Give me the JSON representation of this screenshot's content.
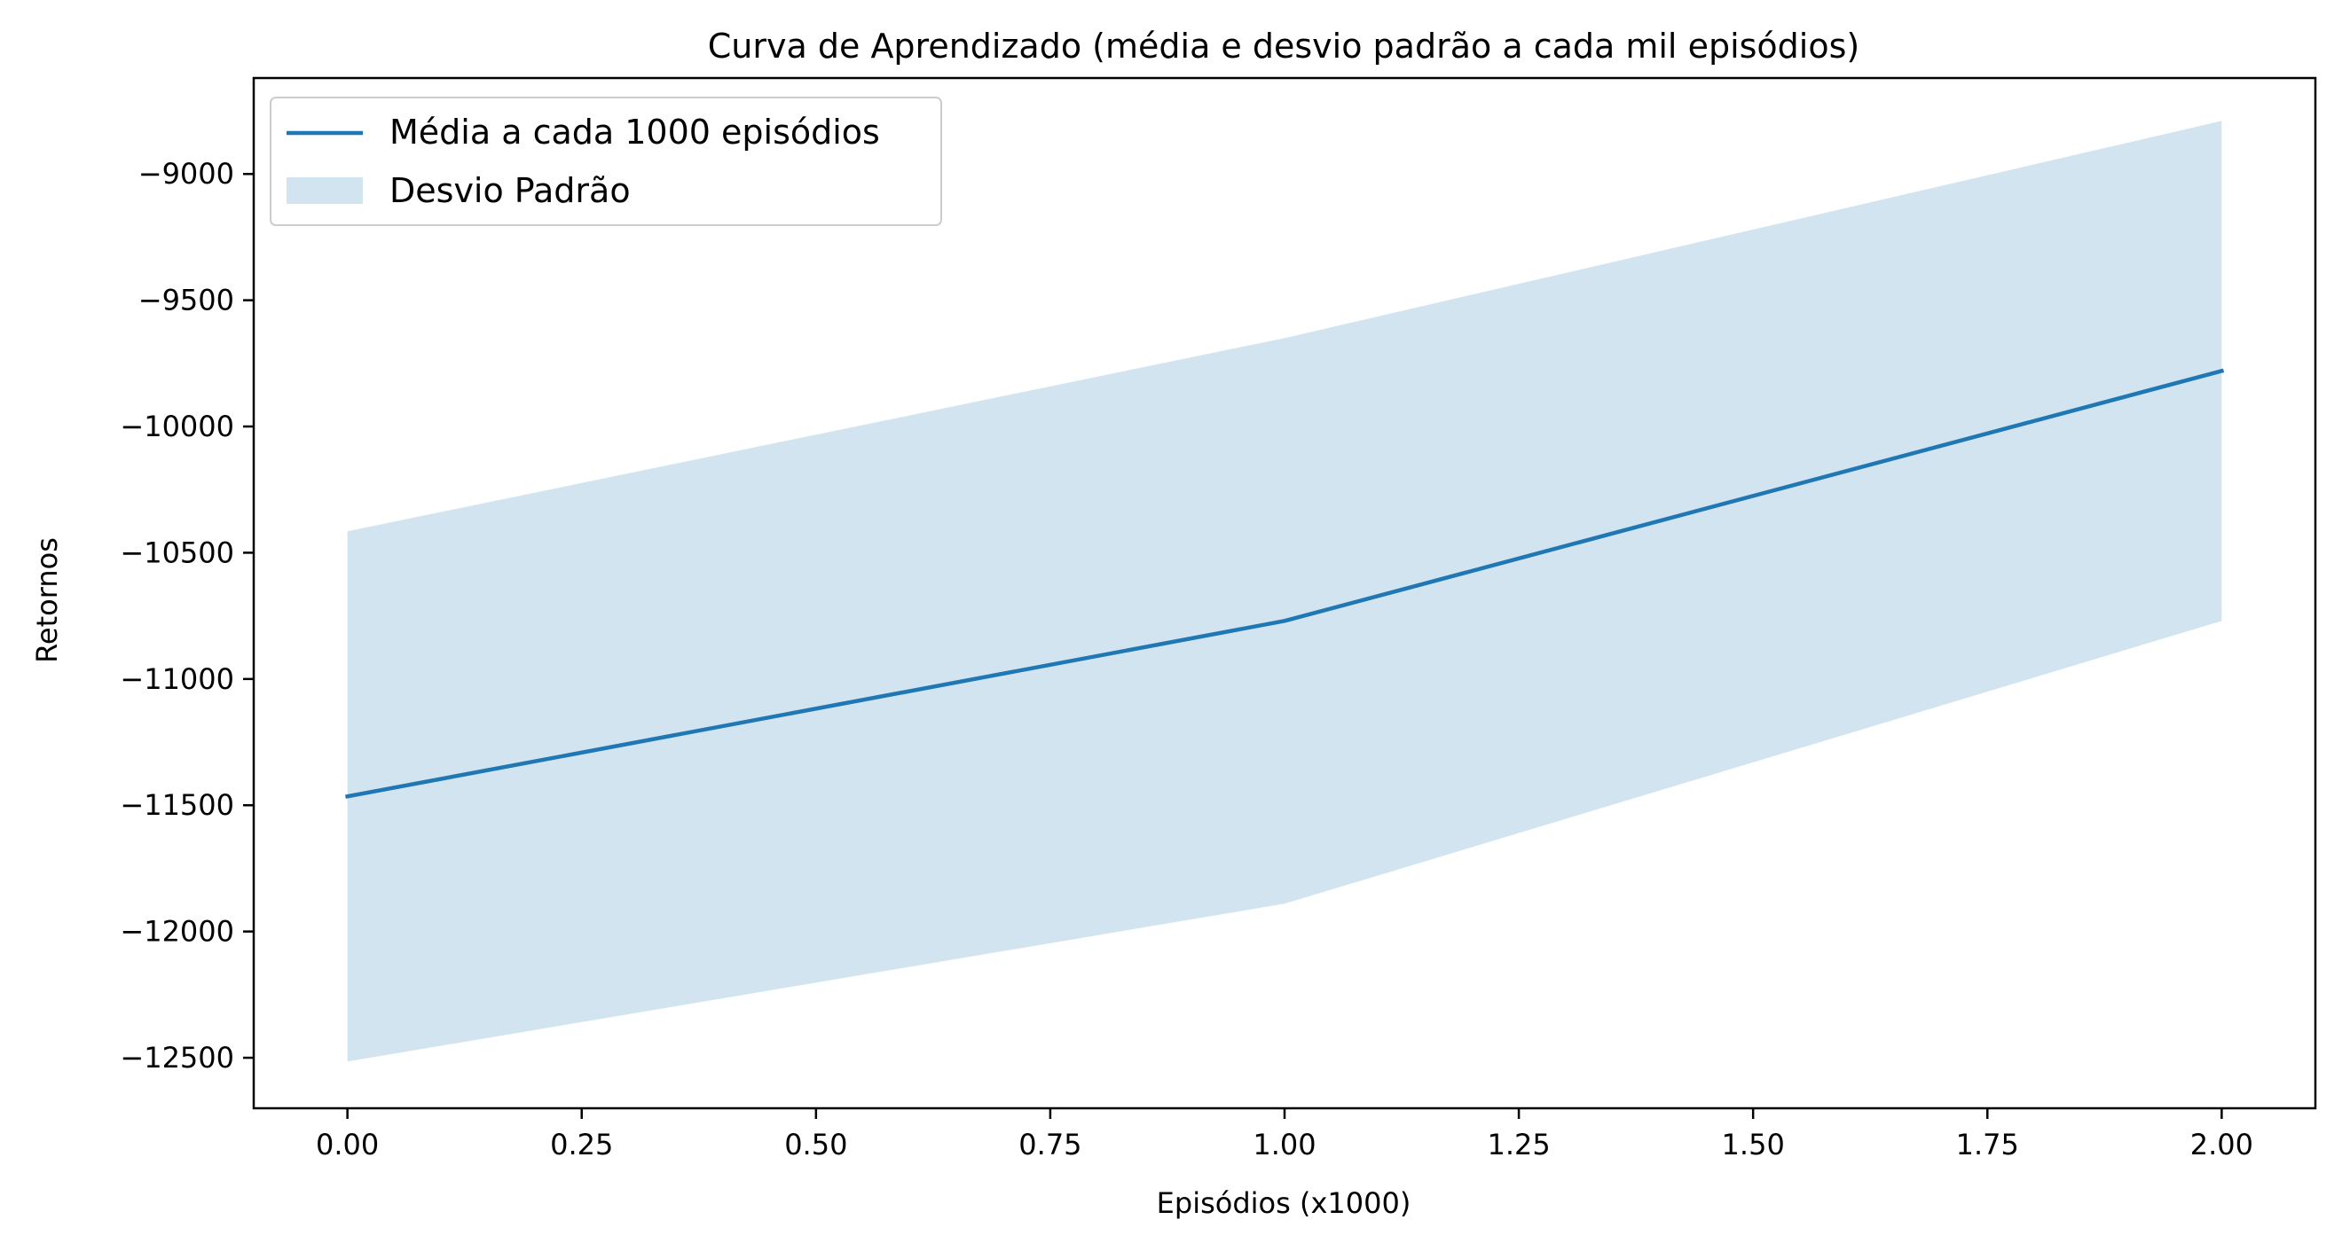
{
  "chart_data": {
    "type": "line",
    "title": "Curva de Aprendizado (média e desvio padrão a cada mil episódios)",
    "xlabel": "Episódios (x1000)",
    "ylabel": "Retornos",
    "xlim": [
      -0.1,
      2.1
    ],
    "ylim": [
      -12700,
      -8620
    ],
    "xticks": [
      0.0,
      0.25,
      0.5,
      0.75,
      1.0,
      1.25,
      1.5,
      1.75,
      2.0
    ],
    "xtick_labels": [
      "0.00",
      "0.25",
      "0.50",
      "0.75",
      "1.00",
      "1.25",
      "1.50",
      "1.75",
      "2.00"
    ],
    "yticks": [
      -9000,
      -9500,
      -10000,
      -10500,
      -11000,
      -11500,
      -12000,
      -12500
    ],
    "ytick_labels": [
      "−9000",
      "−9500",
      "−10000",
      "−10500",
      "−11000",
      "−11500",
      "−12000",
      "−12500"
    ],
    "grid": false,
    "legend_position": "top-left",
    "x": [
      0,
      1,
      2
    ],
    "series": [
      {
        "name": "Média a cada 1000 episódios",
        "kind": "line",
        "color": "#1f77b4",
        "values": [
          -11465,
          -10770,
          -9780
        ]
      },
      {
        "name": "Desvio Padrão",
        "kind": "band",
        "color": "#1f77b4",
        "opacity": 0.2,
        "lower": [
          -12515,
          -11890,
          -10770
        ],
        "upper": [
          -10415,
          -9650,
          -8790
        ]
      }
    ]
  }
}
